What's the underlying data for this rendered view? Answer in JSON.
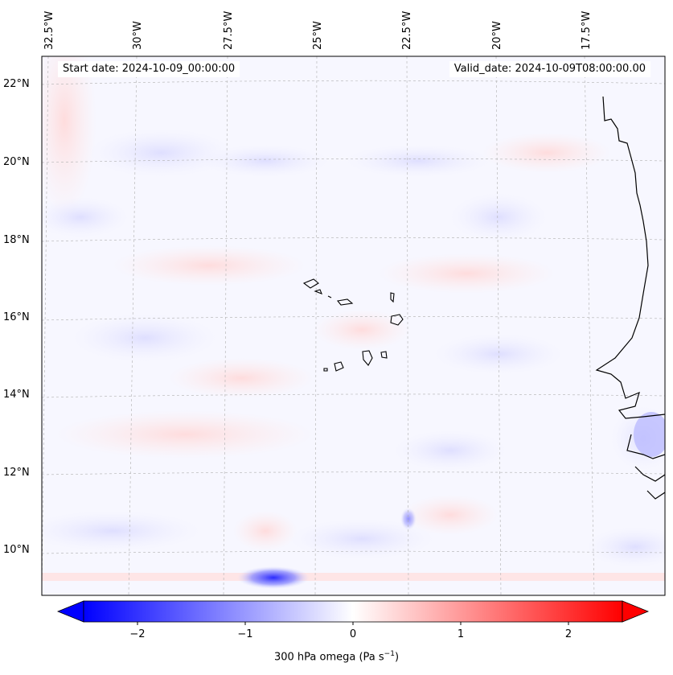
{
  "map": {
    "start_date": "Start date: 2024-10-09_00:00:00",
    "valid_date": "Valid_date: 2024-10-09T08:00:00.00",
    "lon_labels": [
      "32.5°W",
      "30°W",
      "27.5°W",
      "25°W",
      "22.5°W",
      "20°W",
      "17.5°W"
    ],
    "lat_labels": [
      "22°N",
      "20°N",
      "18°N",
      "16°N",
      "14°N",
      "12°N",
      "10°N"
    ],
    "colors": {
      "negative": "#0000ff",
      "neutral": "#ffffff",
      "positive": "#ff0000",
      "coast": "#000000",
      "grid": "#b0b0b0"
    }
  },
  "colorbar": {
    "ticks": [
      "−2",
      "−1",
      "0",
      "1",
      "2"
    ],
    "label_main": "300 hPa omega (Pa s",
    "label_sup": "−1",
    "label_end": ")",
    "min": -2.6,
    "max": 2.6
  }
}
